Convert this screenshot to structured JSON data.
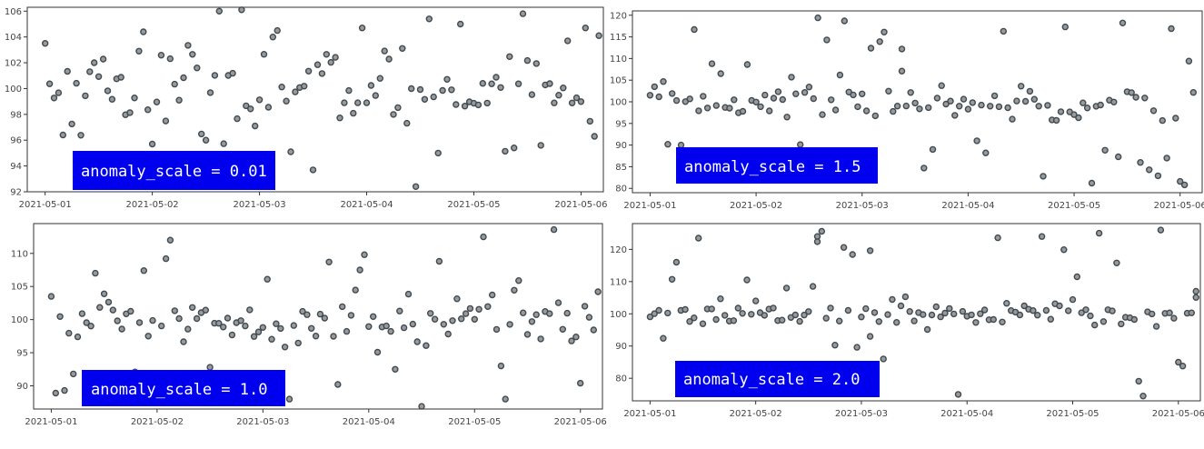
{
  "chart_data": [
    {
      "type": "scatter",
      "annotation": "anomaly_scale = 0.01",
      "x_ticks": [
        "2021-05-01",
        "2021-05-02",
        "2021-05-03",
        "2021-05-04",
        "2021-05-05",
        "2021-05-06"
      ],
      "y_ticks": [
        92,
        94,
        96,
        98,
        100,
        102,
        104,
        106
      ],
      "xlim": [
        "2021-04-30T20:00",
        "2021-05-06T05:00"
      ],
      "ylim": [
        92,
        106.3
      ],
      "base_sd": 1.7,
      "outliers": [
        {
          "x": "2021-05-01T00:00",
          "y": 103.5
        },
        {
          "x": "2021-05-01T04:00",
          "y": 96.4
        },
        {
          "x": "2021-05-01T11:00",
          "y": 102.0
        },
        {
          "x": "2021-05-01T21:00",
          "y": 102.9
        },
        {
          "x": "2021-05-02T00:00",
          "y": 95.7
        },
        {
          "x": "2021-05-01T22:00",
          "y": 104.4
        },
        {
          "x": "2021-05-02T12:00",
          "y": 96.0
        },
        {
          "x": "2021-05-02T15:00",
          "y": 106.0
        },
        {
          "x": "2021-05-02T20:00",
          "y": 106.1
        },
        {
          "x": "2021-05-03T03:00",
          "y": 104.0
        },
        {
          "x": "2021-05-03T04:00",
          "y": 104.5
        },
        {
          "x": "2021-05-03T07:00",
          "y": 95.1
        },
        {
          "x": "2021-05-03T12:00",
          "y": 93.7
        },
        {
          "x": "2021-05-03T23:00",
          "y": 104.7
        },
        {
          "x": "2021-05-04T11:00",
          "y": 92.4
        },
        {
          "x": "2021-05-04T14:00",
          "y": 105.4
        },
        {
          "x": "2021-05-04T16:00",
          "y": 95.0
        },
        {
          "x": "2021-05-04T21:00",
          "y": 105.0
        },
        {
          "x": "2021-05-05T11:00",
          "y": 105.8
        },
        {
          "x": "2021-05-05T15:00",
          "y": 95.6
        },
        {
          "x": "2021-05-06T01:00",
          "y": 104.7
        },
        {
          "x": "2021-05-06T04:00",
          "y": 104.1
        },
        {
          "x": "2021-05-06T03:00",
          "y": 96.3
        },
        {
          "x": "2021-05-05T21:00",
          "y": 103.7
        }
      ]
    },
    {
      "type": "scatter",
      "annotation": "anomaly_scale = 1.5",
      "x_ticks": [
        "2021-05-01",
        "2021-05-02",
        "2021-05-03",
        "2021-05-04",
        "2021-05-05",
        "2021-05-06"
      ],
      "y_ticks": [
        80,
        85,
        90,
        95,
        100,
        105,
        110,
        115,
        120
      ],
      "xlim": [
        "2021-04-30T20:00",
        "2021-05-06T05:00"
      ],
      "ylim": [
        79,
        121
      ],
      "base_sd": 2.0,
      "outliers": [
        {
          "x": "2021-05-01T10:00",
          "y": 116.7
        },
        {
          "x": "2021-05-01T04:00",
          "y": 90.2
        },
        {
          "x": "2021-05-01T07:00",
          "y": 90.0
        },
        {
          "x": "2021-05-01T14:00",
          "y": 108.8
        },
        {
          "x": "2021-05-01T16:00",
          "y": 106.5
        },
        {
          "x": "2021-05-02T14:00",
          "y": 119.4
        },
        {
          "x": "2021-05-02T16:00",
          "y": 114.3
        },
        {
          "x": "2021-05-02T20:00",
          "y": 118.7
        },
        {
          "x": "2021-05-02T08:00",
          "y": 105.7
        },
        {
          "x": "2021-05-02T19:00",
          "y": 106.2
        },
        {
          "x": "2021-05-03T05:00",
          "y": 116.1
        },
        {
          "x": "2021-05-03T04:00",
          "y": 113.9
        },
        {
          "x": "2021-05-03T02:00",
          "y": 112.4
        },
        {
          "x": "2021-05-03T09:00",
          "y": 112.2
        },
        {
          "x": "2021-05-03T09:00",
          "y": 107.1
        },
        {
          "x": "2021-05-03T14:00",
          "y": 84.7
        },
        {
          "x": "2021-05-03T16:00",
          "y": 89.0
        },
        {
          "x": "2021-05-04T02:00",
          "y": 91.0
        },
        {
          "x": "2021-05-04T04:00",
          "y": 88.2
        },
        {
          "x": "2021-05-04T08:00",
          "y": 116.3
        },
        {
          "x": "2021-05-04T17:00",
          "y": 82.8
        },
        {
          "x": "2021-05-04T22:00",
          "y": 117.3
        },
        {
          "x": "2021-05-05T04:00",
          "y": 81.2
        },
        {
          "x": "2021-05-05T07:00",
          "y": 88.8
        },
        {
          "x": "2021-05-05T11:00",
          "y": 118.2
        },
        {
          "x": "2021-05-05T10:00",
          "y": 87.3
        },
        {
          "x": "2021-05-05T15:00",
          "y": 86.0
        },
        {
          "x": "2021-05-05T17:00",
          "y": 84.3
        },
        {
          "x": "2021-05-05T19:00",
          "y": 82.9
        },
        {
          "x": "2021-05-05T21:00",
          "y": 87.0
        },
        {
          "x": "2021-05-05T22:00",
          "y": 116.9
        },
        {
          "x": "2021-05-06T00:00",
          "y": 81.6
        },
        {
          "x": "2021-05-06T01:00",
          "y": 80.8
        },
        {
          "x": "2021-05-06T02:00",
          "y": 109.4
        },
        {
          "x": "2021-05-02T10:00",
          "y": 90.1
        },
        {
          "x": "2021-05-01T22:00",
          "y": 108.6
        }
      ]
    },
    {
      "type": "scatter",
      "annotation": "anomaly_scale = 1.0",
      "x_ticks": [
        "2021-05-01",
        "2021-05-02",
        "2021-05-03",
        "2021-05-04",
        "2021-05-05",
        "2021-05-06"
      ],
      "y_ticks": [
        90,
        95,
        100,
        105,
        110
      ],
      "xlim": [
        "2021-04-30T20:00",
        "2021-05-06T05:00"
      ],
      "ylim": [
        86.5,
        114.5
      ],
      "base_sd": 2.0,
      "outliers": [
        {
          "x": "2021-05-01T00:00",
          "y": 103.5
        },
        {
          "x": "2021-05-01T01:00",
          "y": 88.9
        },
        {
          "x": "2021-05-01T03:00",
          "y": 89.3
        },
        {
          "x": "2021-05-01T10:00",
          "y": 107.0
        },
        {
          "x": "2021-05-01T05:00",
          "y": 91.8
        },
        {
          "x": "2021-05-01T19:00",
          "y": 92.1
        },
        {
          "x": "2021-05-01T21:00",
          "y": 107.4
        },
        {
          "x": "2021-05-02T00:00",
          "y": 91.2
        },
        {
          "x": "2021-05-02T02:00",
          "y": 109.2
        },
        {
          "x": "2021-05-02T03:00",
          "y": 112.0
        },
        {
          "x": "2021-05-02T12:00",
          "y": 92.8
        },
        {
          "x": "2021-05-03T01:00",
          "y": 106.1
        },
        {
          "x": "2021-05-03T06:00",
          "y": 88.0
        },
        {
          "x": "2021-05-03T15:00",
          "y": 108.7
        },
        {
          "x": "2021-05-03T22:00",
          "y": 107.5
        },
        {
          "x": "2021-05-03T23:00",
          "y": 109.8
        },
        {
          "x": "2021-05-04T06:00",
          "y": 92.5
        },
        {
          "x": "2021-05-04T12:00",
          "y": 86.9
        },
        {
          "x": "2021-05-04T16:00",
          "y": 108.8
        },
        {
          "x": "2021-05-05T02:00",
          "y": 112.5
        },
        {
          "x": "2021-05-05T06:00",
          "y": 93.0
        },
        {
          "x": "2021-05-05T07:00",
          "y": 88.0
        },
        {
          "x": "2021-05-05T10:00",
          "y": 105.9
        },
        {
          "x": "2021-05-05T18:00",
          "y": 113.6
        },
        {
          "x": "2021-05-06T00:00",
          "y": 90.4
        },
        {
          "x": "2021-05-06T04:00",
          "y": 104.2
        },
        {
          "x": "2021-05-03T17:00",
          "y": 90.2
        }
      ]
    },
    {
      "type": "scatter",
      "annotation": "anomaly_scale = 2.0",
      "x_ticks": [
        "2021-05-01",
        "2021-05-02",
        "2021-05-03",
        "2021-05-04",
        "2021-05-05",
        "2021-05-06"
      ],
      "y_ticks": [
        80,
        90,
        100,
        110,
        120
      ],
      "xlim": [
        "2021-04-30T20:00",
        "2021-05-06T05:00"
      ],
      "ylim": [
        73,
        128
      ],
      "base_sd": 1.9,
      "outliers": [
        {
          "x": "2021-05-01T03:00",
          "y": 92.4
        },
        {
          "x": "2021-05-01T05:00",
          "y": 110.7
        },
        {
          "x": "2021-05-01T06:00",
          "y": 116.0
        },
        {
          "x": "2021-05-01T11:00",
          "y": 123.5
        },
        {
          "x": "2021-05-02T07:00",
          "y": 108.0
        },
        {
          "x": "2021-05-01T22:00",
          "y": 110.5
        },
        {
          "x": "2021-05-02T14:00",
          "y": 124.0
        },
        {
          "x": "2021-05-02T14:00",
          "y": 122.4
        },
        {
          "x": "2021-05-02T15:00",
          "y": 125.6
        },
        {
          "x": "2021-05-02T13:00",
          "y": 108.5
        },
        {
          "x": "2021-05-02T20:00",
          "y": 120.6
        },
        {
          "x": "2021-05-02T22:00",
          "y": 118.4
        },
        {
          "x": "2021-05-02T18:00",
          "y": 90.3
        },
        {
          "x": "2021-05-02T23:00",
          "y": 89.6
        },
        {
          "x": "2021-05-03T02:00",
          "y": 119.6
        },
        {
          "x": "2021-05-03T05:00",
          "y": 86.0
        },
        {
          "x": "2021-05-03T02:00",
          "y": 93.0
        },
        {
          "x": "2021-05-03T10:00",
          "y": 105.3
        },
        {
          "x": "2021-05-03T22:00",
          "y": 75.0
        },
        {
          "x": "2021-05-04T07:00",
          "y": 123.6
        },
        {
          "x": "2021-05-04T17:00",
          "y": 124.0
        },
        {
          "x": "2021-05-04T22:00",
          "y": 119.9
        },
        {
          "x": "2021-05-05T01:00",
          "y": 111.5
        },
        {
          "x": "2021-05-05T06:00",
          "y": 125.0
        },
        {
          "x": "2021-05-05T10:00",
          "y": 115.8
        },
        {
          "x": "2021-05-05T15:00",
          "y": 79.1
        },
        {
          "x": "2021-05-05T16:00",
          "y": 74.5
        },
        {
          "x": "2021-05-05T20:00",
          "y": 126.0
        },
        {
          "x": "2021-05-06T00:00",
          "y": 85.0
        },
        {
          "x": "2021-05-06T01:00",
          "y": 83.8
        },
        {
          "x": "2021-05-06T04:00",
          "y": 107.0
        },
        {
          "x": "2021-05-06T04:00",
          "y": 105.1
        }
      ]
    }
  ]
}
